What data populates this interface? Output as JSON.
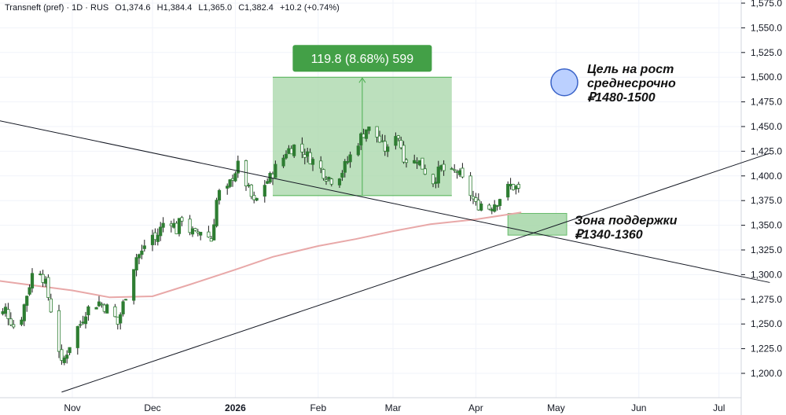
{
  "header": {
    "symbol": "Transneft (pref) · 1D · RUS",
    "open": "O1,374.6",
    "high": "H1,384.4",
    "low": "L1,365.0",
    "close": "C1,382.4",
    "change": "+10.2 (+0.74%)"
  },
  "colors": {
    "up": "#2e7d32",
    "down": "#2e7d32",
    "wick": "#1b1b1b",
    "ma": "#e8a8a8",
    "measure_fill": "#a5d6a7",
    "measure_label": "#43a047",
    "target_circle": "#bbd0ff",
    "target_circle_stroke": "#3a63c8",
    "support_box": "#a5d6a7",
    "trendline": "#131722"
  },
  "chart_data": {
    "type": "candlestick",
    "x_labels": [
      {
        "label": "Nov",
        "date": "2025-11-01",
        "bold": false
      },
      {
        "label": "Dec",
        "date": "2025-12-01",
        "bold": false
      },
      {
        "label": "2026",
        "date": "2026-01-01",
        "bold": true
      },
      {
        "label": "Feb",
        "date": "2026-02-01",
        "bold": false
      },
      {
        "label": "Mar",
        "date": "2026-03-01",
        "bold": false
      },
      {
        "label": "Apr",
        "date": "2026-04-01",
        "bold": false
      },
      {
        "label": "May",
        "date": "2026-05-01",
        "bold": false
      },
      {
        "label": "Jun",
        "date": "2026-06-01",
        "bold": false
      },
      {
        "label": "Jul",
        "date": "2026-07-01",
        "bold": false
      }
    ],
    "y_ticks": [
      {
        "value": 1200,
        "label": "1,200.0"
      },
      {
        "value": 1225,
        "label": "1,225.0"
      },
      {
        "value": 1250,
        "label": "1,250.0"
      },
      {
        "value": 1275,
        "label": "1,275.0"
      },
      {
        "value": 1300,
        "label": "1,300.0"
      },
      {
        "value": 1325,
        "label": "1,325.0"
      },
      {
        "value": 1350,
        "label": "1,350.0"
      },
      {
        "value": 1375,
        "label": "1,375.0"
      },
      {
        "value": 1400,
        "label": "1,400.0"
      },
      {
        "value": 1425,
        "label": "1,425.0"
      },
      {
        "value": 1450,
        "label": "1,450.0"
      },
      {
        "value": 1475,
        "label": "1,475.0"
      },
      {
        "value": 1500,
        "label": "1,500.0"
      },
      {
        "value": 1525,
        "label": "1,525.0"
      },
      {
        "value": 1550,
        "label": "1,550.0"
      },
      {
        "value": 1575,
        "label": "1,575.0"
      }
    ],
    "ylim": [
      1176,
      1583
    ],
    "xlim": [
      "2025-10-01",
      "2026-07-20"
    ],
    "close_path": [
      [
        "2025-10-01",
        1280
      ],
      [
        "2025-10-04",
        1252
      ],
      [
        "2025-10-07",
        1265
      ],
      [
        "2025-10-10",
        1248
      ],
      [
        "2025-10-13",
        1258
      ],
      [
        "2025-10-15",
        1280
      ],
      [
        "2025-10-17",
        1300
      ],
      [
        "2025-10-20",
        1305
      ],
      [
        "2025-10-22",
        1290
      ],
      [
        "2025-10-24",
        1265
      ],
      [
        "2025-10-27",
        1225
      ],
      [
        "2025-10-28",
        1208
      ],
      [
        "2025-10-30",
        1222
      ],
      [
        "2025-11-02",
        1243
      ],
      [
        "2025-11-04",
        1250
      ],
      [
        "2025-11-06",
        1263
      ],
      [
        "2025-11-08",
        1268
      ],
      [
        "2025-11-11",
        1272
      ],
      [
        "2025-11-13",
        1268
      ],
      [
        "2025-11-16",
        1262
      ],
      [
        "2025-11-18",
        1250
      ],
      [
        "2025-11-20",
        1270
      ],
      [
        "2025-11-23",
        1300
      ],
      [
        "2025-11-25",
        1318
      ],
      [
        "2025-11-27",
        1322
      ],
      [
        "2025-11-30",
        1345
      ],
      [
        "2025-12-02",
        1335
      ],
      [
        "2025-12-05",
        1352
      ],
      [
        "2025-12-08",
        1355
      ],
      [
        "2025-12-10",
        1345
      ],
      [
        "2025-12-12",
        1358
      ],
      [
        "2025-12-15",
        1345
      ],
      [
        "2025-12-17",
        1340
      ],
      [
        "2025-12-19",
        1345
      ],
      [
        "2025-12-21",
        1342
      ],
      [
        "2025-12-23",
        1335
      ],
      [
        "2025-12-25",
        1375
      ],
      [
        "2025-12-27",
        1390
      ],
      [
        "2025-12-29",
        1385
      ],
      [
        "2025-12-31",
        1400
      ],
      [
        "2026-01-02",
        1410
      ],
      [
        "2026-01-04",
        1400
      ],
      [
        "2026-01-06",
        1385
      ],
      [
        "2026-01-08",
        1372
      ],
      [
        "2026-01-10",
        1380
      ],
      [
        "2026-01-12",
        1392
      ],
      [
        "2026-01-14",
        1398
      ],
      [
        "2026-01-16",
        1408
      ],
      [
        "2026-01-18",
        1412
      ],
      [
        "2026-01-20",
        1425
      ],
      [
        "2026-01-23",
        1430
      ],
      [
        "2026-01-26",
        1425
      ],
      [
        "2026-01-29",
        1418
      ],
      [
        "2026-02-01",
        1410
      ],
      [
        "2026-02-04",
        1400
      ],
      [
        "2026-02-07",
        1395
      ],
      [
        "2026-02-10",
        1405
      ],
      [
        "2026-02-13",
        1420
      ],
      [
        "2026-02-16",
        1435
      ],
      [
        "2026-02-19",
        1448
      ],
      [
        "2026-02-22",
        1445
      ],
      [
        "2026-02-25",
        1430
      ],
      [
        "2026-02-27",
        1425
      ],
      [
        "2026-03-01",
        1448
      ],
      [
        "2026-03-03",
        1440
      ],
      [
        "2026-03-05",
        1420
      ],
      [
        "2026-03-08",
        1410
      ],
      [
        "2026-03-10",
        1418
      ],
      [
        "2026-03-13",
        1405
      ],
      [
        "2026-03-16",
        1395
      ],
      [
        "2026-03-19",
        1408
      ],
      [
        "2026-03-22",
        1400
      ],
      [
        "2026-03-25",
        1405
      ],
      [
        "2026-03-28",
        1390
      ],
      [
        "2026-03-30",
        1382
      ],
      [
        "2026-04-01",
        1370
      ],
      [
        "2026-04-03",
        1372
      ],
      [
        "2026-04-06",
        1368
      ],
      [
        "2026-04-09",
        1375
      ],
      [
        "2026-04-12",
        1385
      ],
      [
        "2026-04-14",
        1390
      ],
      [
        "2026-04-16",
        1388
      ],
      [
        "2026-04-18",
        1382
      ]
    ],
    "ma_path": [
      [
        "2025-10-01",
        1295
      ],
      [
        "2025-10-15",
        1290
      ],
      [
        "2025-11-01",
        1284
      ],
      [
        "2025-11-15",
        1277
      ],
      [
        "2025-12-01",
        1278
      ],
      [
        "2025-12-15",
        1290
      ],
      [
        "2026-01-01",
        1305
      ],
      [
        "2026-01-15",
        1318
      ],
      [
        "2026-02-01",
        1329
      ],
      [
        "2026-02-15",
        1336
      ],
      [
        "2026-03-01",
        1344
      ],
      [
        "2026-03-15",
        1351
      ],
      [
        "2026-04-01",
        1356
      ],
      [
        "2026-04-18",
        1363
      ]
    ],
    "trendlines": [
      {
        "start": [
          "2025-10-01",
          1458
        ],
        "end": [
          "2026-07-20",
          1292
        ]
      },
      {
        "start": [
          "2025-10-28",
          1181
        ],
        "end": [
          "2026-07-20",
          1423
        ]
      }
    ],
    "measure": {
      "start": "2026-01-15",
      "end": "2026-03-23",
      "low": 1380,
      "high": 1500,
      "label": "119.8 (8.68%) 599"
    },
    "target_annotation": {
      "date": "2026-05-10",
      "value": 1490,
      "lines": [
        "Цель на рост",
        "среднесрочно",
        "₽1480-1500"
      ]
    },
    "support_zone": {
      "start": "2026-04-13",
      "end": "2026-05-05",
      "low": 1340,
      "high": 1362,
      "lines": [
        "Зона поддержки",
        "₽1340-1360"
      ]
    }
  }
}
